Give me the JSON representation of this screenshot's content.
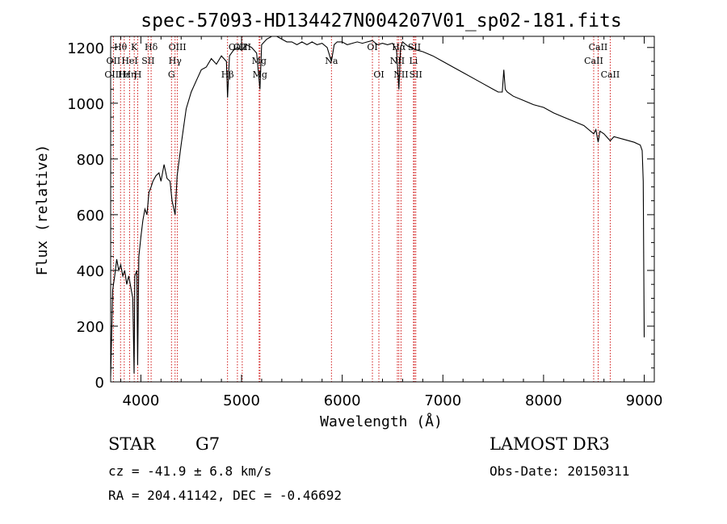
{
  "chart_data": {
    "type": "line",
    "title": "spec-57093-HD134427N004207V01_sp02-181.fits",
    "xlabel": "Wavelength (Å)",
    "ylabel": "Flux (relative)",
    "xlim": [
      3700,
      9100
    ],
    "ylim": [
      0,
      1240
    ],
    "xticks": [
      4000,
      5000,
      6000,
      7000,
      8000,
      9000
    ],
    "yticks": [
      0,
      200,
      400,
      600,
      800,
      1000,
      1200
    ],
    "series": [
      {
        "name": "flux",
        "x": [
          3700,
          3720,
          3740,
          3760,
          3780,
          3800,
          3820,
          3840,
          3860,
          3880,
          3900,
          3920,
          3933,
          3940,
          3960,
          3968,
          3980,
          4000,
          4020,
          4040,
          4060,
          4080,
          4102,
          4120,
          4150,
          4180,
          4200,
          4230,
          4260,
          4290,
          4310,
          4340,
          4360,
          4400,
          4450,
          4500,
          4550,
          4600,
          4650,
          4700,
          4750,
          4800,
          4850,
          4861,
          4880,
          4920,
          4960,
          5000,
          5050,
          5100,
          5150,
          5183,
          5200,
          5250,
          5300,
          5350,
          5400,
          5450,
          5500,
          5550,
          5600,
          5650,
          5700,
          5750,
          5800,
          5850,
          5893,
          5920,
          5950,
          6000,
          6050,
          6100,
          6150,
          6200,
          6250,
          6300,
          6350,
          6400,
          6450,
          6500,
          6540,
          6563,
          6580,
          6600,
          6650,
          6700,
          6750,
          6800,
          6900,
          7000,
          7100,
          7200,
          7300,
          7400,
          7500,
          7550,
          7590,
          7605,
          7620,
          7640,
          7700,
          7800,
          7900,
          8000,
          8100,
          8200,
          8300,
          8400,
          8498,
          8520,
          8542,
          8560,
          8600,
          8662,
          8700,
          8800,
          8900,
          8960,
          8980,
          8990,
          9000
        ],
        "values": [
          20,
          330,
          380,
          440,
          400,
          420,
          380,
          400,
          350,
          380,
          340,
          300,
          30,
          380,
          400,
          60,
          450,
          520,
          580,
          620,
          600,
          680,
          700,
          720,
          740,
          750,
          720,
          780,
          730,
          720,
          650,
          600,
          740,
          850,
          980,
          1040,
          1080,
          1120,
          1130,
          1160,
          1140,
          1170,
          1150,
          1020,
          1170,
          1190,
          1200,
          1190,
          1210,
          1200,
          1180,
          1050,
          1210,
          1230,
          1240,
          1240,
          1230,
          1220,
          1220,
          1210,
          1220,
          1210,
          1220,
          1210,
          1215,
          1200,
          1150,
          1210,
          1220,
          1220,
          1210,
          1215,
          1220,
          1215,
          1220,
          1225,
          1210,
          1215,
          1210,
          1215,
          1190,
          1050,
          1200,
          1220,
          1205,
          1195,
          1190,
          1185,
          1170,
          1150,
          1130,
          1110,
          1090,
          1070,
          1050,
          1040,
          1040,
          1120,
          1050,
          1040,
          1025,
          1010,
          995,
          985,
          965,
          950,
          935,
          920,
          890,
          905,
          860,
          900,
          890,
          865,
          880,
          870,
          860,
          850,
          830,
          720,
          160
        ]
      }
    ],
    "lines": [
      {
        "label": "Hθ",
        "x": 3798,
        "row": 1
      },
      {
        "label": "OII",
        "x": 3727,
        "row": 2
      },
      {
        "label": "OIII",
        "x": 3727,
        "row": 3
      },
      {
        "label": "Hε",
        "x": 3835,
        "row": 3
      },
      {
        "label": "K",
        "x": 3934,
        "row": 1
      },
      {
        "label": "HeI",
        "x": 3889,
        "row": 2
      },
      {
        "label": "Hη",
        "x": 3889,
        "row": 3
      },
      {
        "label": "H",
        "x": 3969,
        "row": 3
      },
      {
        "label": "Hδ",
        "x": 4102,
        "row": 1
      },
      {
        "label": "SII",
        "x": 4072,
        "row": 2
      },
      {
        "label": "OIII",
        "x": 4363,
        "row": 1
      },
      {
        "label": "Hγ",
        "x": 4340,
        "row": 2
      },
      {
        "label": "G",
        "x": 4304,
        "row": 3
      },
      {
        "label": "OIII",
        "x": 4959,
        "row": 1
      },
      {
        "label": "OIII",
        "x": 5007,
        "row": 1
      },
      {
        "label": "Mg",
        "x": 5175,
        "row": 2
      },
      {
        "label": "Hβ",
        "x": 4861,
        "row": 3
      },
      {
        "label": "Mg",
        "x": 5183,
        "row": 3
      },
      {
        "label": "Na",
        "x": 5893,
        "row": 2
      },
      {
        "label": "OI",
        "x": 6300,
        "row": 1
      },
      {
        "label": "OI",
        "x": 6364,
        "row": 3
      },
      {
        "label": "Hα",
        "x": 6563,
        "row": 1
      },
      {
        "label": "NII",
        "x": 6548,
        "row": 2
      },
      {
        "label": "NII",
        "x": 6584,
        "row": 3
      },
      {
        "label": "SII",
        "x": 6717,
        "row": 1
      },
      {
        "label": "Li",
        "x": 6708,
        "row": 2
      },
      {
        "label": "SII",
        "x": 6731,
        "row": 3
      },
      {
        "label": "CaII",
        "x": 8542,
        "row": 1
      },
      {
        "label": "CaII",
        "x": 8498,
        "row": 2
      },
      {
        "label": "CaII",
        "x": 8662,
        "row": 3
      }
    ]
  },
  "info": {
    "object_class": "STAR",
    "subclass": "G7",
    "survey": "LAMOST DR3",
    "redshift": "cz = -41.9 ± 6.8 km/s",
    "obs_date": "Obs-Date: 20150311",
    "coords": "RA = 204.41142, DEC =  -0.46692"
  }
}
